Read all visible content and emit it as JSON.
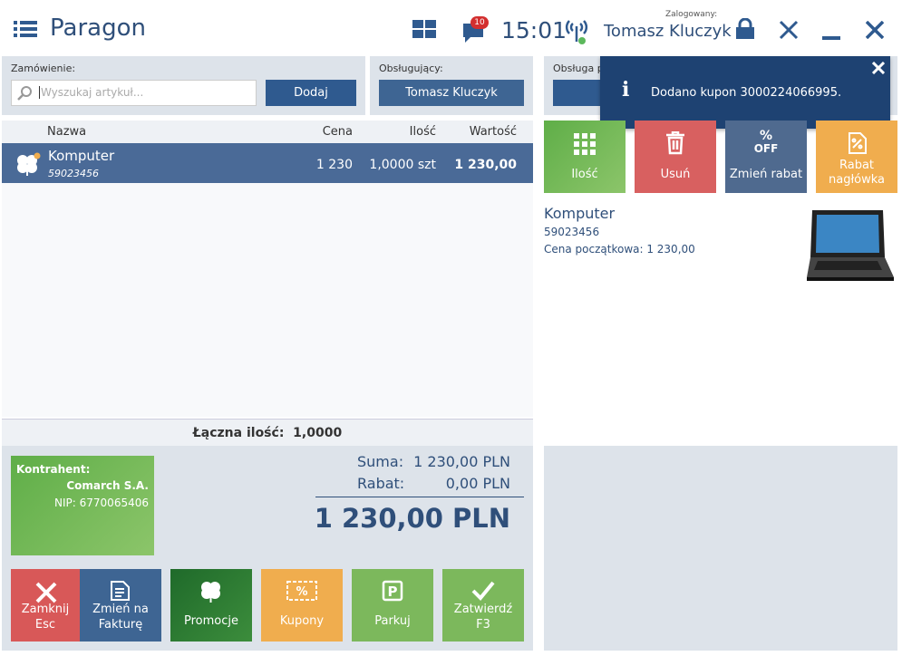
{
  "header": {
    "title": "Paragon",
    "badge": "10",
    "time": "15:01",
    "logged_label": "Zalogowany:",
    "user": "Tomasz Kluczyk"
  },
  "order": {
    "label": "Zamówienie:",
    "search_placeholder": "Wyszukaj artykuł...",
    "add_button": "Dodaj"
  },
  "serving": {
    "label": "Obsługujący:",
    "button": "Tomasz Kluczyk"
  },
  "service": {
    "label": "Obsługa p"
  },
  "notification": {
    "message": "Dodano kupon 3000224066995."
  },
  "table": {
    "columns": [
      "Nazwa",
      "Cena",
      "Ilość",
      "Wartość"
    ],
    "rows": [
      {
        "name": "Komputer",
        "code": "59023456",
        "price": "1 230",
        "quantity": "1,0000 szt",
        "value": "1 230,00"
      }
    ],
    "total_label": "Łączna ilość:",
    "total_quantity": "1,0000"
  },
  "contractor": {
    "label": "Kontrahent:",
    "name": "Comarch S.A.",
    "nip": "NIP: 6770065406"
  },
  "summary": {
    "sum_label": "Suma:",
    "sum": "1 230,00 PLN",
    "discount_label": "Rabat:",
    "discount": "0,00 PLN",
    "total": "1 230,00 PLN"
  },
  "actions": [
    {
      "label": "Zamknij",
      "key": "Esc"
    },
    {
      "label": "Zmień na Fakturę"
    },
    {
      "label": "Promocje"
    },
    {
      "label": "Kupony"
    },
    {
      "label": "Parkuj"
    },
    {
      "label": "Zatwierdź",
      "key": "F3"
    }
  ],
  "tiles": [
    {
      "label": "Ilość"
    },
    {
      "label": "Usuń"
    },
    {
      "label": "Zmień rabat",
      "icon_top": "%",
      "icon_bottom": "OFF"
    },
    {
      "label": "Rabat nagłówka"
    }
  ],
  "details": {
    "name": "Komputer",
    "code": "59023456",
    "initial_price": "Cena początkowa: 1 230,00"
  }
}
